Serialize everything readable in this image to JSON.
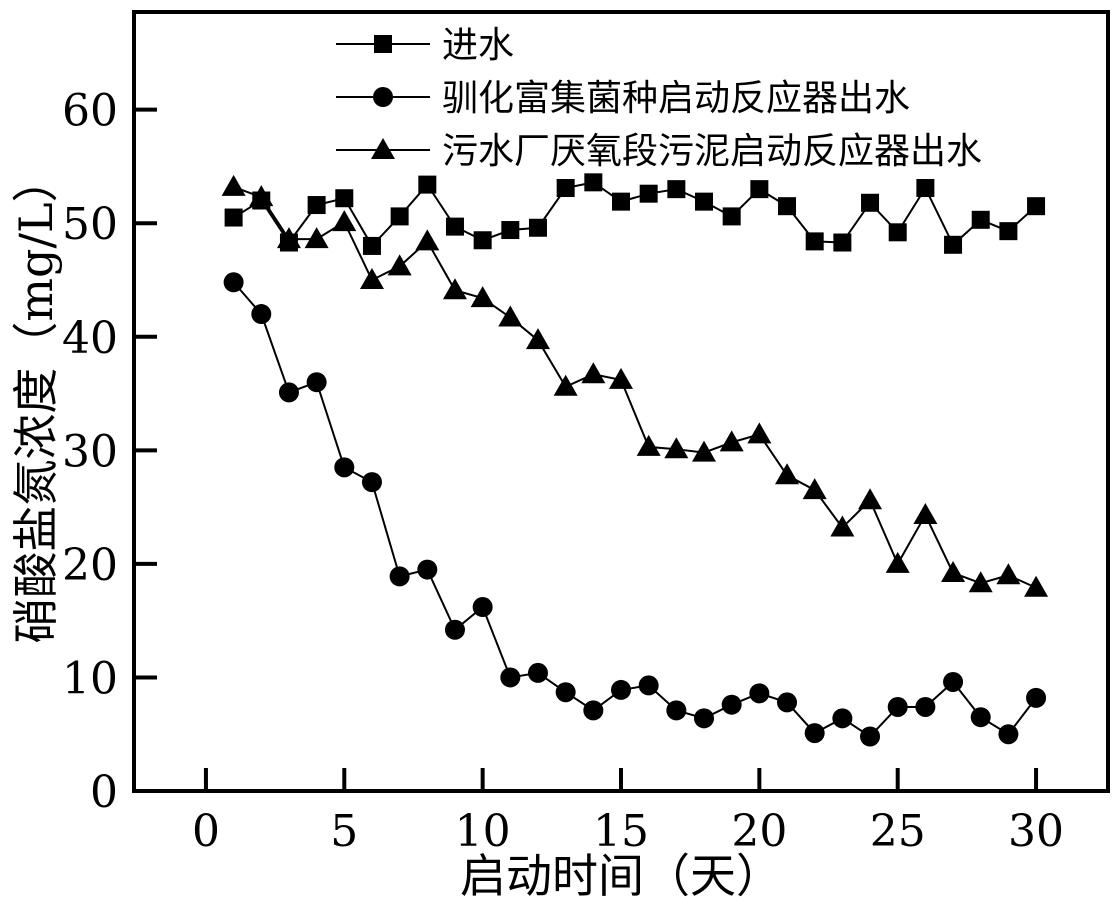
{
  "figure": {
    "background": "#ffffff",
    "axis_color": "#000000"
  },
  "chart_data": {
    "type": "line",
    "title": "",
    "xlabel": "启动时间（天）",
    "ylabel": "硝酸盐氮浓度（mg/L）",
    "xlim": [
      -2.6,
      32.6
    ],
    "ylim": [
      0,
      68.6
    ],
    "xticks": [
      0,
      5,
      10,
      15,
      20,
      25,
      30
    ],
    "yticks": [
      0,
      10,
      20,
      30,
      40,
      50,
      60
    ],
    "grid": false,
    "legend_position": "top-center-inside",
    "x": [
      1,
      2,
      3,
      4,
      5,
      6,
      7,
      8,
      9,
      10,
      11,
      12,
      13,
      14,
      15,
      16,
      17,
      18,
      19,
      20,
      21,
      22,
      23,
      24,
      25,
      26,
      27,
      28,
      29,
      30
    ],
    "series": [
      {
        "name": "进水",
        "marker": "square",
        "color": "#000000",
        "values": [
          50.5,
          52.0,
          48.3,
          51.6,
          52.2,
          48.0,
          50.6,
          53.4,
          49.7,
          48.5,
          49.4,
          49.6,
          53.1,
          53.6,
          51.9,
          52.6,
          53.0,
          51.9,
          50.6,
          53.0,
          51.5,
          48.4,
          48.3,
          51.8,
          49.2,
          53.1,
          48.1,
          50.3,
          49.3,
          51.5
        ]
      },
      {
        "name": "驯化富集菌种启动反应器出水",
        "marker": "circle",
        "color": "#000000",
        "values": [
          44.8,
          42.0,
          35.1,
          36.0,
          28.5,
          27.2,
          18.9,
          19.5,
          14.2,
          16.2,
          10.0,
          10.4,
          8.7,
          7.1,
          8.9,
          9.3,
          7.1,
          6.4,
          7.6,
          8.6,
          7.8,
          5.1,
          6.4,
          4.8,
          7.4,
          7.4,
          9.6,
          6.5,
          5.0,
          8.2
        ]
      },
      {
        "name": "污水厂厌氧段污泥启动反应器出水",
        "marker": "triangle",
        "color": "#000000",
        "values": [
          53.2,
          52.3,
          48.6,
          48.6,
          50.1,
          45.0,
          46.2,
          48.4,
          44.1,
          43.4,
          41.7,
          39.7,
          35.6,
          36.7,
          36.2,
          30.3,
          30.1,
          29.8,
          30.7,
          31.4,
          27.8,
          26.5,
          23.2,
          25.6,
          20.0,
          24.3,
          19.2,
          18.3,
          19.0,
          17.9
        ]
      }
    ]
  }
}
